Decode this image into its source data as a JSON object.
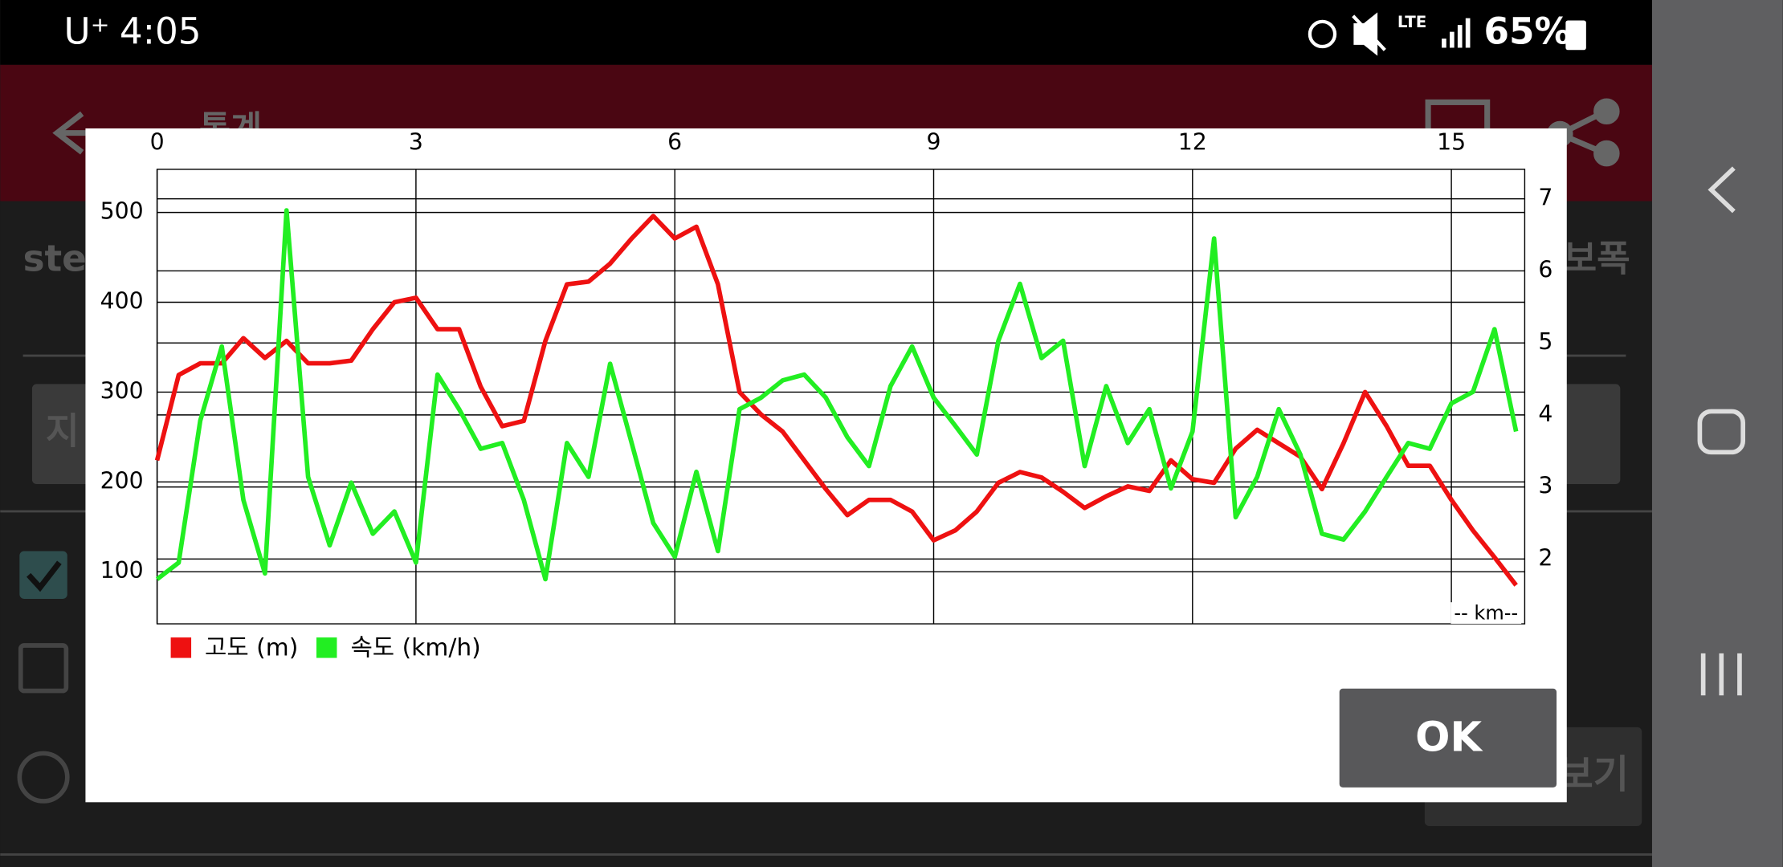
{
  "status": {
    "carrier": "U⁺",
    "time": "4:05",
    "network": "LTE",
    "battery": "65%"
  },
  "app": {
    "title": "통계"
  },
  "background": {
    "left_label": "step",
    "right_label": "보폭",
    "button_left": "지",
    "button_right": "보기"
  },
  "dialog": {
    "ok": "OK"
  },
  "chart_data": {
    "type": "line",
    "xlabel": "-- km--",
    "x": [
      0,
      0.25,
      0.5,
      0.75,
      1,
      1.25,
      1.5,
      1.75,
      2,
      2.25,
      2.5,
      2.75,
      3,
      3.25,
      3.5,
      3.75,
      4,
      4.25,
      4.5,
      4.75,
      5,
      5.25,
      5.5,
      5.75,
      6,
      6.25,
      6.5,
      6.75,
      7,
      7.25,
      7.5,
      7.75,
      8,
      8.25,
      8.5,
      8.75,
      9,
      9.25,
      9.5,
      9.75,
      10,
      10.25,
      10.5,
      10.75,
      11,
      11.25,
      11.5,
      11.75,
      12,
      12.25,
      12.5,
      12.75,
      13,
      13.25,
      13.5,
      13.75,
      14,
      14.25,
      14.5,
      14.75,
      15,
      15.25,
      15.5,
      15.75
    ],
    "series": [
      {
        "name": "고도 (m)",
        "color": "#ee1111",
        "values": [
          224,
          319,
          332,
          332,
          360,
          338,
          357,
          332,
          332,
          335,
          370,
          400,
          405,
          370,
          370,
          306,
          262,
          268,
          357,
          420,
          423,
          443,
          471,
          496,
          471,
          484,
          420,
          300,
          275,
          256,
          224,
          192,
          163,
          180,
          180,
          167,
          135,
          146,
          167,
          199,
          211,
          205,
          189,
          171,
          184,
          195,
          190,
          224,
          203,
          199,
          237,
          258,
          243,
          228,
          192,
          243,
          300,
          262,
          218,
          218,
          180,
          146,
          116,
          85
        ]
      },
      {
        "name": "속도 (km/h)",
        "color": "#22ee22",
        "axis": "y2",
        "values": [
          1.72,
          1.95,
          3.92,
          4.95,
          2.82,
          1.8,
          6.84,
          3.14,
          2.19,
          3.06,
          2.35,
          2.66,
          1.95,
          4.56,
          4.08,
          3.53,
          3.61,
          2.82,
          1.72,
          3.61,
          3.14,
          4.71,
          3.61,
          2.5,
          2.03,
          3.21,
          2.11,
          4.08,
          4.24,
          4.48,
          4.56,
          4.24,
          3.69,
          3.29,
          4.4,
          4.95,
          4.24,
          3.85,
          3.45,
          5.03,
          5.82,
          4.79,
          5.03,
          3.29,
          4.4,
          3.61,
          4.08,
          2.98,
          3.77,
          6.45,
          2.58,
          3.14,
          4.08,
          3.45,
          2.35,
          2.27,
          2.66,
          3.14,
          3.61,
          3.53,
          4.16,
          4.32,
          5.19,
          3.77
        ]
      }
    ],
    "xlim": [
      0,
      15.85
    ],
    "xticks": [
      0,
      3,
      6,
      9,
      12,
      15
    ],
    "ylim": [
      42,
      548
    ],
    "yticks": [
      100,
      200,
      300,
      400,
      500
    ],
    "y2lim": [
      1.1,
      7.41
    ],
    "y2ticks": [
      2,
      3,
      4,
      5,
      6,
      7
    ],
    "grid": true
  }
}
